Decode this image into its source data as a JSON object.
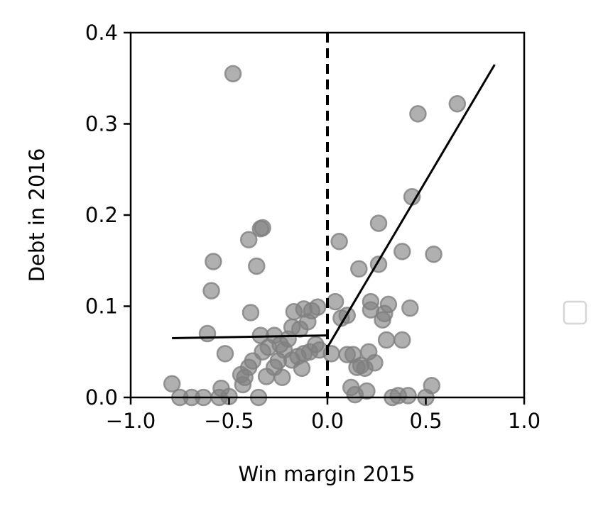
{
  "chart_data": {
    "type": "scatter",
    "title": "",
    "xlabel": "Win margin 2015",
    "ylabel": "Debt in 2016",
    "xlim": [
      -1.0,
      1.0
    ],
    "ylim": [
      0.0,
      0.4
    ],
    "x_ticks": [
      "−1.0",
      "−0.5",
      "0.0",
      "0.5",
      "1.0"
    ],
    "x_tick_values": [
      -1.0,
      -0.5,
      0.0,
      0.5,
      1.0
    ],
    "y_ticks": [
      "0.0",
      "0.1",
      "0.2",
      "0.3",
      "0.4"
    ],
    "y_tick_values": [
      0.0,
      0.1,
      0.2,
      0.3,
      0.4
    ],
    "grid": false,
    "legend": "empty box at right-center",
    "cutoff_line": {
      "x": 0.0,
      "style": "dashed",
      "color": "#000000"
    },
    "point_color": "#808080",
    "line_color": "#000000",
    "fit_left": [
      [
        -0.79,
        0.065
      ],
      [
        0.0,
        0.068
      ]
    ],
    "fit_right": [
      [
        0.0,
        0.055
      ],
      [
        0.85,
        0.365
      ]
    ],
    "points": [
      [
        -0.48,
        0.355
      ],
      [
        0.66,
        0.322
      ],
      [
        0.46,
        0.311
      ],
      [
        0.43,
        0.22
      ],
      [
        0.26,
        0.191
      ],
      [
        -0.33,
        0.186
      ],
      [
        -0.34,
        0.185
      ],
      [
        -0.4,
        0.173
      ],
      [
        0.06,
        0.171
      ],
      [
        0.38,
        0.16
      ],
      [
        0.54,
        0.157
      ],
      [
        -0.58,
        0.149
      ],
      [
        0.26,
        0.146
      ],
      [
        -0.36,
        0.144
      ],
      [
        0.16,
        0.141
      ],
      [
        -0.59,
        0.117
      ],
      [
        0.04,
        0.105
      ],
      [
        0.22,
        0.105
      ],
      [
        0.31,
        0.102
      ],
      [
        -0.05,
        0.099
      ],
      [
        0.42,
        0.098
      ],
      [
        -0.12,
        0.097
      ],
      [
        -0.17,
        0.094
      ],
      [
        -0.39,
        0.093
      ],
      [
        -0.08,
        0.095
      ],
      [
        0.22,
        0.096
      ],
      [
        0.1,
        0.09
      ],
      [
        0.07,
        0.087
      ],
      [
        0.29,
        0.092
      ],
      [
        0.28,
        0.085
      ],
      [
        -0.1,
        0.083
      ],
      [
        -0.18,
        0.077
      ],
      [
        -0.14,
        0.075
      ],
      [
        -0.61,
        0.07
      ],
      [
        -0.34,
        0.068
      ],
      [
        -0.27,
        0.068
      ],
      [
        -0.2,
        0.064
      ],
      [
        0.3,
        0.063
      ],
      [
        0.38,
        0.063
      ],
      [
        -0.24,
        0.058
      ],
      [
        -0.3,
        0.055
      ],
      [
        -0.06,
        0.058
      ],
      [
        -0.04,
        0.052
      ],
      [
        -0.22,
        0.052
      ],
      [
        -0.09,
        0.05
      ],
      [
        -0.12,
        0.048
      ],
      [
        0.02,
        0.048
      ],
      [
        0.1,
        0.047
      ],
      [
        0.13,
        0.047
      ],
      [
        0.21,
        0.05
      ],
      [
        -0.52,
        0.048
      ],
      [
        -0.33,
        0.05
      ],
      [
        -0.15,
        0.045
      ],
      [
        -0.18,
        0.041
      ],
      [
        -0.25,
        0.04
      ],
      [
        -0.38,
        0.04
      ],
      [
        -0.4,
        0.033
      ],
      [
        0.24,
        0.038
      ],
      [
        0.17,
        0.035
      ],
      [
        0.15,
        0.033
      ],
      [
        0.19,
        0.032
      ],
      [
        -0.27,
        0.033
      ],
      [
        -0.13,
        0.032
      ],
      [
        -0.44,
        0.025
      ],
      [
        -0.42,
        0.022
      ],
      [
        -0.31,
        0.023
      ],
      [
        -0.23,
        0.022
      ],
      [
        -0.79,
        0.015
      ],
      [
        -0.43,
        0.014
      ],
      [
        -0.54,
        0.01
      ],
      [
        0.12,
        0.011
      ],
      [
        0.2,
        0.007
      ],
      [
        0.53,
        0.013
      ],
      [
        -0.75,
        0.0
      ],
      [
        -0.69,
        0.0
      ],
      [
        -0.63,
        0.0
      ],
      [
        -0.55,
        0.0
      ],
      [
        -0.5,
        0.001
      ],
      [
        -0.35,
        0.0
      ],
      [
        0.14,
        0.003
      ],
      [
        0.33,
        0.0
      ],
      [
        0.36,
        0.002
      ],
      [
        0.41,
        0.002
      ],
      [
        0.5,
        0.0
      ]
    ]
  }
}
